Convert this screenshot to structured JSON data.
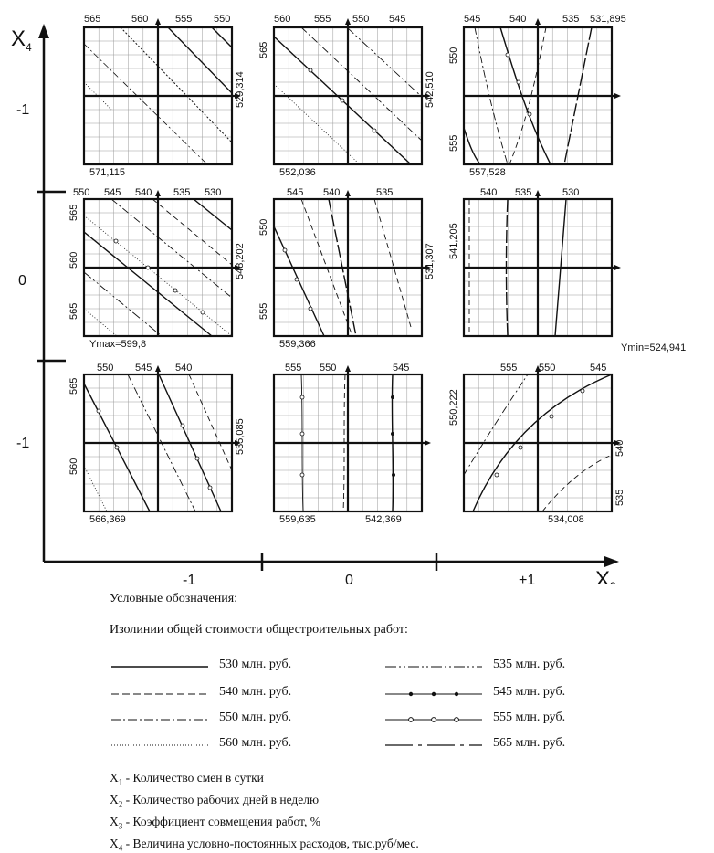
{
  "axes": {
    "x_axis_label": "X",
    "x_axis_sub": "3",
    "y_axis_label": "X",
    "y_axis_sub": "4",
    "x_ticks": [
      "-1",
      "0",
      "+1"
    ],
    "y_ticks": [
      "-1",
      "0",
      "-1"
    ]
  },
  "panels": [
    {
      "id": "r1c1",
      "top_labels": [
        "565",
        "560",
        "555",
        "550"
      ],
      "right_value": "529,314",
      "bottom_value": "571,115"
    },
    {
      "id": "r1c2",
      "top_labels": [
        "560",
        "555",
        "550",
        "545"
      ],
      "left_value": "565",
      "right_value": "542,510",
      "bottom_value": "552,036"
    },
    {
      "id": "r1c3",
      "top_labels": [
        "545",
        "540",
        "535"
      ],
      "corner_value": "531,895",
      "left_labels": [
        "550",
        "555"
      ],
      "bottom_value": "557,528"
    },
    {
      "id": "r2c1",
      "top_labels": [
        "550",
        "545",
        "540",
        "535",
        "530"
      ],
      "left_labels": [
        "565",
        "560",
        "565"
      ],
      "right_value": "548,202",
      "bottom_value": "Ymax=599,8"
    },
    {
      "id": "r2c2",
      "top_labels": [
        "545",
        "540",
        "535"
      ],
      "left_labels": [
        "550",
        "555"
      ],
      "right_value": "531,307",
      "bottom_value": "559,366"
    },
    {
      "id": "r2c3",
      "top_labels": [
        "540",
        "535",
        "530"
      ],
      "left_value": "541,205",
      "side_value": "Ymin=524,941"
    },
    {
      "id": "r3c1",
      "top_labels": [
        "550",
        "545",
        "540"
      ],
      "left_labels": [
        "565",
        "560"
      ],
      "right_value": "535,085",
      "bottom_value": "566,369"
    },
    {
      "id": "r3c2",
      "top_labels": [
        "555",
        "550",
        "545"
      ],
      "bottom_value": "559,635",
      "bottom_value_2": "542,369"
    },
    {
      "id": "r3c3",
      "top_labels": [
        "555",
        "550",
        "545"
      ],
      "left_value": "550,222",
      "right_labels": [
        "540",
        "535"
      ],
      "bottom_value": "534,008"
    }
  ],
  "legend": {
    "heading": "Условные обозначения:",
    "subheading": "Изолинии общей стоимости общестроительных работ:",
    "items": [
      {
        "label": "530 млн. руб.",
        "style": "solid"
      },
      {
        "label": "535 млн. руб.",
        "style": "dash-dot-dot"
      },
      {
        "label": "540 млн. руб.",
        "style": "dashed"
      },
      {
        "label": "545 млн. руб.",
        "style": "dots-solid"
      },
      {
        "label": "550 млн. руб.",
        "style": "dash-dot"
      },
      {
        "label": "555 млн. руб.",
        "style": "circles"
      },
      {
        "label": "560 млн. руб.",
        "style": "dotted"
      },
      {
        "label": "565 млн. руб.",
        "style": "long-dash"
      }
    ],
    "factors": [
      {
        "symbol": "X",
        "sub": "1",
        "text": " - Количество смен в сутки"
      },
      {
        "symbol": "X",
        "sub": "2",
        "text": " - Количество рабочих дней в неделю"
      },
      {
        "symbol": "X",
        "sub": "3",
        "text": " - Коэффициент совмещения работ, %"
      },
      {
        "symbol": "X",
        "sub": "4",
        "text": " - Величина условно-постоянных расходов, тыс.руб/мес."
      }
    ]
  },
  "colors": {
    "ink": "#111111",
    "grid": "#9a9a9a"
  }
}
